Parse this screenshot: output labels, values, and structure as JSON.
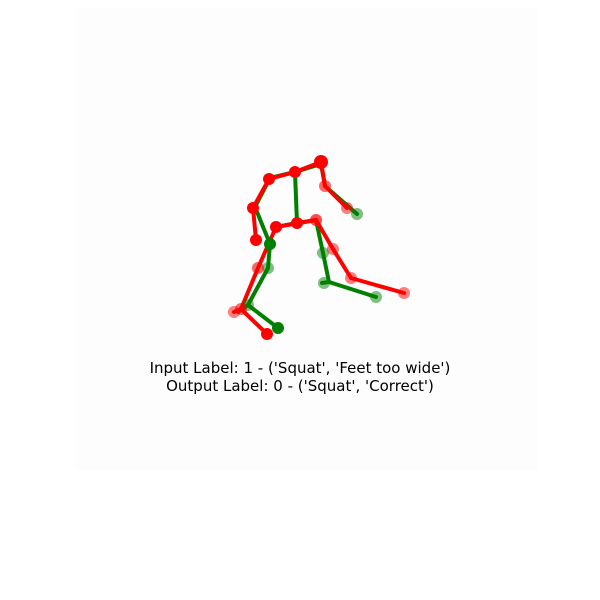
{
  "figure": {
    "input_label": "Input Label: 1 - ('Squat', 'Feet too wide')",
    "output_label": "Output Label: 0 - ('Squat', 'Correct')"
  },
  "colors": {
    "input_pose": "#ff0000",
    "output_pose": "#008000",
    "background": "#fdfdfd"
  }
}
